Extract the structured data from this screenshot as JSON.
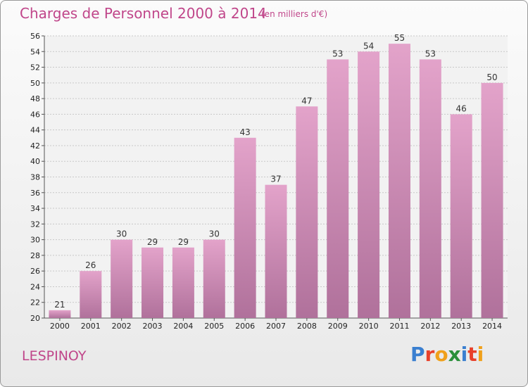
{
  "header": {
    "title": "Charges de Personnel 2000 à 2014",
    "subtitle": "(en milliers d'€)"
  },
  "footer": {
    "place": "LESPINOY",
    "logo_text": "Proxiti",
    "logo_colors": [
      "#3a7fd0",
      "#e8402a",
      "#f0a01a",
      "#2a8f3a",
      "#3a7fd0",
      "#e8402a",
      "#f0a01a"
    ]
  },
  "colors": {
    "title": "#c0468a",
    "bar_top": "#e3a3ca",
    "bar_bottom": "#b0719b",
    "grid": "#c8c8c8"
  },
  "chart_data": {
    "type": "bar",
    "title": "Charges de Personnel 2000 à 2014",
    "subtitle": "(en milliers d'€)",
    "categories": [
      "2000",
      "2001",
      "2002",
      "2003",
      "2004",
      "2005",
      "2006",
      "2007",
      "2008",
      "2009",
      "2010",
      "2011",
      "2012",
      "2013",
      "2014"
    ],
    "values": [
      21,
      26,
      30,
      29,
      29,
      30,
      43,
      37,
      47,
      53,
      54,
      55,
      53,
      46,
      50
    ],
    "ylim": [
      20,
      56
    ],
    "yticks": [
      20,
      22,
      24,
      26,
      28,
      30,
      32,
      34,
      36,
      38,
      40,
      42,
      44,
      46,
      48,
      50,
      52,
      54,
      56
    ],
    "grid": true,
    "xlabel": "",
    "ylabel": ""
  }
}
